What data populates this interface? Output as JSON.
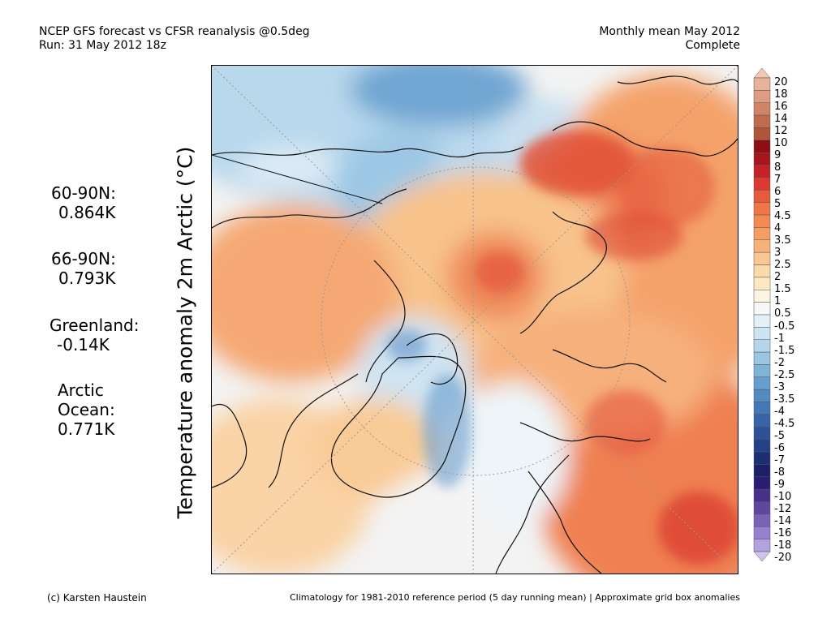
{
  "header": {
    "title_line1": "NCEP GFS forecast vs CFSR reanalysis @0.5deg",
    "title_line2": "Run: 31 May 2012 18z",
    "right_line1": "Monthly mean May 2012",
    "right_line2": "Complete"
  },
  "y_title": "Temperature anomaly 2m Arctic (°C)",
  "stats": [
    {
      "l1": "60-90N:",
      "l2": "0.864K"
    },
    {
      "l1": "66-90N:",
      "l2": "0.793K"
    },
    {
      "l1": "Greenland:",
      "l2": "-0.14K"
    },
    {
      "l1": "Arctic",
      "l2": "Ocean:",
      "l3": "0.771K"
    }
  ],
  "colorbar": {
    "labels": [
      "20",
      "18",
      "16",
      "14",
      "12",
      "10",
      "9",
      "8",
      "7",
      "6",
      "5",
      "4.5",
      "4",
      "3.5",
      "3",
      "2.5",
      "2",
      "1.5",
      "1",
      "0.5",
      "-0.5",
      "-1",
      "-1.5",
      "-2",
      "-2.5",
      "-3",
      "-3.5",
      "-4",
      "-4.5",
      "-5",
      "-6",
      "-7",
      "-8",
      "-9",
      "-10",
      "-12",
      "-14",
      "-16",
      "-18",
      "-20"
    ],
    "colors": [
      "#f1c8b4",
      "#e8b39b",
      "#de9d82",
      "#cf8466",
      "#c06c4c",
      "#b0553a",
      "#8b0f15",
      "#a8161d",
      "#c62127",
      "#da3a32",
      "#e85a3c",
      "#ef7647",
      "#f38a52",
      "#f59e63",
      "#f7b377",
      "#f9c78f",
      "#fbd9a8",
      "#fde8c4",
      "#fdf4e2",
      "#f7f7f7",
      "#e3f0f8",
      "#cde4f1",
      "#b5d6ea",
      "#9ac6e2",
      "#7fb4d8",
      "#669fcd",
      "#528bc2",
      "#4377b6",
      "#3763a8",
      "#2c5199",
      "#234088",
      "#1c2f75",
      "#1c1e66",
      "#2b1b73",
      "#46308a",
      "#5f47a1",
      "#7a62b8",
      "#9581cc",
      "#b2a2de",
      "#cfc4ef"
    ]
  },
  "footer": {
    "left": "(c) Karsten Haustein",
    "right": "Climatology for 1981-2010 reference period (5 day running mean) | Approximate grid box anomalies"
  }
}
